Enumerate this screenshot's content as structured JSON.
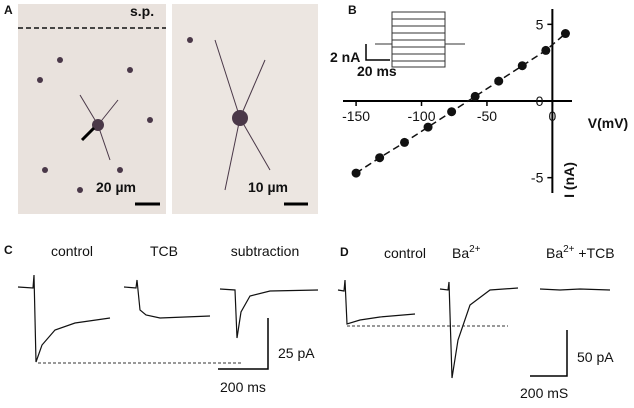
{
  "panels": {
    "a": {
      "letter": "A",
      "marker": "s.p.",
      "scale_left": "20 µm",
      "scale_right": "10 µm"
    },
    "b": {
      "letter": "B",
      "inset_y_scale": "2 nA",
      "inset_x_scale": "20 ms"
    },
    "c": {
      "letter": "C",
      "labels": [
        "control",
        "TCB",
        "subtraction"
      ],
      "y_scale": "25 pA",
      "x_scale": "200 ms"
    },
    "d": {
      "letter": "D",
      "labels": [
        "control",
        {
          "base": "Ba",
          "sup": "2+"
        },
        {
          "base": "Ba",
          "sup": "2+",
          "suffix": " +TCB"
        }
      ],
      "y_scale": "50 pA",
      "x_scale": "200 mS"
    }
  },
  "chart_data": {
    "type": "scatter",
    "x_label": "V(mV)",
    "y_label": "I (nA)",
    "x": [
      -150,
      -132,
      -113,
      -95,
      -77,
      -59,
      -41,
      -23,
      -5,
      10
    ],
    "values": [
      -4.7,
      -3.7,
      -2.7,
      -1.7,
      -0.7,
      0.3,
      1.3,
      2.3,
      3.3,
      4.4
    ],
    "color": "#111111",
    "xlim": [
      -160,
      15
    ],
    "ylim": [
      -6,
      6
    ],
    "xticks": [
      -150,
      -100,
      -50,
      0
    ],
    "yticks": [
      -5,
      0,
      5
    ],
    "fit_line": true
  }
}
